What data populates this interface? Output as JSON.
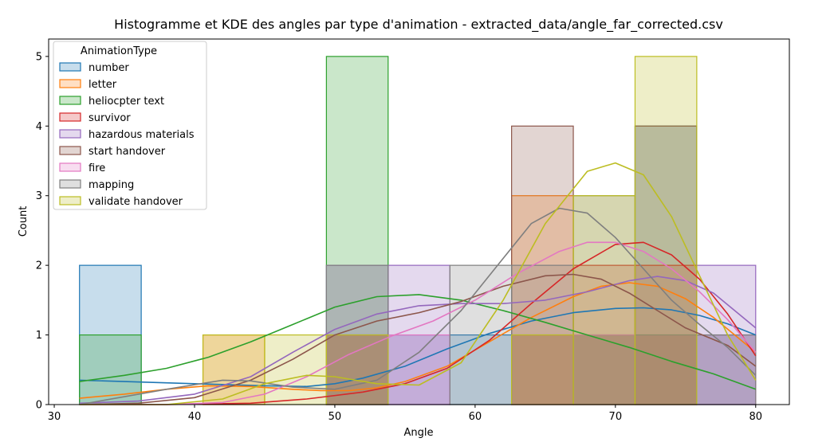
{
  "chart_data": {
    "type": "histogram",
    "title": "Histogramme et KDE des angles par type d'animation - extracted_data/angle_far_corrected.csv",
    "xlabel": "Angle",
    "ylabel": "Count",
    "xlim": [
      29.6,
      82.4
    ],
    "ylim": [
      0,
      5.25
    ],
    "xticks": [
      30,
      40,
      50,
      60,
      70,
      80
    ],
    "yticks": [
      0,
      1,
      2,
      3,
      4,
      5
    ],
    "bin_edges": [
      31.8,
      36.2,
      40.6,
      45.0,
      49.4,
      53.8,
      58.2,
      62.6,
      67.0,
      71.4,
      75.8,
      80.0
    ],
    "legend": {
      "title": "AnimationType",
      "placement": "upper-left"
    },
    "series": [
      {
        "name": "number",
        "color": "#1f77b4",
        "counts": [
          2,
          0,
          0,
          0,
          1,
          1,
          1,
          1,
          1,
          4,
          1
        ],
        "kde": [
          [
            31.8,
            0.35
          ],
          [
            35,
            0.33
          ],
          [
            40,
            0.3
          ],
          [
            45,
            0.27
          ],
          [
            48,
            0.26
          ],
          [
            50,
            0.3
          ],
          [
            52,
            0.38
          ],
          [
            55,
            0.55
          ],
          [
            58,
            0.8
          ],
          [
            61,
            1.02
          ],
          [
            64,
            1.2
          ],
          [
            67,
            1.32
          ],
          [
            70,
            1.38
          ],
          [
            72,
            1.39
          ],
          [
            74,
            1.36
          ],
          [
            76,
            1.28
          ],
          [
            78,
            1.16
          ],
          [
            80,
            1.0
          ]
        ]
      },
      {
        "name": "letter",
        "color": "#ff7f0e",
        "counts": [
          0,
          0,
          1,
          0,
          0,
          0,
          0,
          3,
          1,
          1,
          0
        ],
        "kde": [
          [
            31.8,
            0.09
          ],
          [
            35,
            0.15
          ],
          [
            38,
            0.22
          ],
          [
            41,
            0.27
          ],
          [
            44,
            0.26
          ],
          [
            47,
            0.22
          ],
          [
            49,
            0.2
          ],
          [
            51,
            0.2
          ],
          [
            53,
            0.24
          ],
          [
            55,
            0.33
          ],
          [
            58,
            0.55
          ],
          [
            61,
            0.9
          ],
          [
            64,
            1.25
          ],
          [
            67,
            1.55
          ],
          [
            69,
            1.7
          ],
          [
            71,
            1.75
          ],
          [
            73,
            1.7
          ],
          [
            75,
            1.52
          ],
          [
            77,
            1.25
          ],
          [
            80,
            0.75
          ]
        ]
      },
      {
        "name": "heliocpter text",
        "color": "#2ca02c",
        "counts": [
          1,
          0,
          0,
          0,
          5,
          0,
          0,
          0,
          1,
          1,
          0
        ],
        "kde": [
          [
            31.8,
            0.33
          ],
          [
            35,
            0.42
          ],
          [
            38,
            0.52
          ],
          [
            41,
            0.68
          ],
          [
            44,
            0.9
          ],
          [
            47,
            1.15
          ],
          [
            50,
            1.4
          ],
          [
            53,
            1.55
          ],
          [
            56,
            1.58
          ],
          [
            59,
            1.5
          ],
          [
            62,
            1.35
          ],
          [
            65,
            1.18
          ],
          [
            68,
            1.0
          ],
          [
            71,
            0.82
          ],
          [
            74,
            0.62
          ],
          [
            77,
            0.44
          ],
          [
            80,
            0.22
          ]
        ]
      },
      {
        "name": "survivor",
        "color": "#d62728",
        "counts": [
          0,
          0,
          0,
          0,
          1,
          0,
          0,
          1,
          2,
          2,
          0
        ],
        "kde": [
          [
            31.8,
            0.0
          ],
          [
            38,
            0.0
          ],
          [
            44,
            0.02
          ],
          [
            48,
            0.08
          ],
          [
            52,
            0.18
          ],
          [
            55,
            0.3
          ],
          [
            58,
            0.52
          ],
          [
            61,
            0.92
          ],
          [
            64,
            1.45
          ],
          [
            67,
            1.95
          ],
          [
            70,
            2.3
          ],
          [
            72,
            2.33
          ],
          [
            74,
            2.15
          ],
          [
            76,
            1.8
          ],
          [
            78,
            1.3
          ],
          [
            80,
            0.7
          ]
        ]
      },
      {
        "name": "hazardous materials",
        "color": "#9467bd",
        "counts": [
          0,
          0,
          0,
          0,
          2,
          2,
          0,
          0,
          1,
          1,
          2
        ],
        "kde": [
          [
            31.8,
            0.02
          ],
          [
            36,
            0.05
          ],
          [
            40,
            0.15
          ],
          [
            44,
            0.4
          ],
          [
            47,
            0.75
          ],
          [
            50,
            1.08
          ],
          [
            53,
            1.3
          ],
          [
            56,
            1.42
          ],
          [
            59,
            1.45
          ],
          [
            62,
            1.45
          ],
          [
            65,
            1.5
          ],
          [
            68,
            1.62
          ],
          [
            71,
            1.78
          ],
          [
            73,
            1.84
          ],
          [
            75,
            1.78
          ],
          [
            77,
            1.6
          ],
          [
            80,
            1.1
          ]
        ]
      },
      {
        "name": "start handover",
        "color": "#8c564b",
        "counts": [
          0,
          0,
          0,
          0,
          1,
          0,
          0,
          4,
          0,
          4,
          0
        ],
        "kde": [
          [
            31.8,
            0.0
          ],
          [
            36,
            0.02
          ],
          [
            40,
            0.1
          ],
          [
            44,
            0.35
          ],
          [
            47,
            0.65
          ],
          [
            50,
            1.0
          ],
          [
            53,
            1.2
          ],
          [
            56,
            1.32
          ],
          [
            59,
            1.48
          ],
          [
            62,
            1.7
          ],
          [
            65,
            1.85
          ],
          [
            67,
            1.87
          ],
          [
            69,
            1.8
          ],
          [
            71,
            1.6
          ],
          [
            73,
            1.35
          ],
          [
            75,
            1.1
          ],
          [
            78,
            0.85
          ],
          [
            80,
            0.55
          ]
        ]
      },
      {
        "name": "fire",
        "color": "#e377c2",
        "counts": [
          0,
          0,
          0,
          0,
          1,
          1,
          0,
          1,
          1,
          1,
          1
        ],
        "kde": [
          [
            31.8,
            0.0
          ],
          [
            38,
            0.0
          ],
          [
            42,
            0.03
          ],
          [
            45,
            0.15
          ],
          [
            48,
            0.4
          ],
          [
            51,
            0.72
          ],
          [
            54,
            0.98
          ],
          [
            57,
            1.2
          ],
          [
            60,
            1.5
          ],
          [
            63,
            1.88
          ],
          [
            66,
            2.2
          ],
          [
            68,
            2.33
          ],
          [
            70,
            2.33
          ],
          [
            72,
            2.2
          ],
          [
            74,
            1.95
          ],
          [
            76,
            1.62
          ],
          [
            78,
            1.22
          ],
          [
            80,
            0.75
          ]
        ]
      },
      {
        "name": "mapping",
        "color": "#7f7f7f",
        "counts": [
          0,
          0,
          0,
          0,
          2,
          0,
          2,
          2,
          3,
          1,
          1
        ],
        "kde": [
          [
            31.8,
            0.0
          ],
          [
            38,
            0.22
          ],
          [
            42,
            0.35
          ],
          [
            44,
            0.34
          ],
          [
            47,
            0.25
          ],
          [
            50,
            0.22
          ],
          [
            53,
            0.35
          ],
          [
            56,
            0.75
          ],
          [
            59,
            1.35
          ],
          [
            62,
            2.1
          ],
          [
            64,
            2.6
          ],
          [
            66,
            2.82
          ],
          [
            68,
            2.75
          ],
          [
            70,
            2.4
          ],
          [
            72,
            1.95
          ],
          [
            74,
            1.5
          ],
          [
            76,
            1.15
          ],
          [
            78,
            0.82
          ],
          [
            80,
            0.42
          ]
        ]
      },
      {
        "name": "validate handover",
        "color": "#bcbd22",
        "counts": [
          0,
          0,
          1,
          1,
          1,
          0,
          0,
          1,
          3,
          5,
          0
        ],
        "kde": [
          [
            31.8,
            0.0
          ],
          [
            38,
            0.0
          ],
          [
            42,
            0.08
          ],
          [
            45,
            0.3
          ],
          [
            48,
            0.42
          ],
          [
            50,
            0.4
          ],
          [
            53,
            0.3
          ],
          [
            56,
            0.28
          ],
          [
            59,
            0.6
          ],
          [
            62,
            1.5
          ],
          [
            65,
            2.6
          ],
          [
            68,
            3.35
          ],
          [
            70,
            3.47
          ],
          [
            72,
            3.3
          ],
          [
            74,
            2.7
          ],
          [
            76,
            1.85
          ],
          [
            78,
            1.0
          ],
          [
            80,
            0.35
          ]
        ]
      }
    ]
  }
}
